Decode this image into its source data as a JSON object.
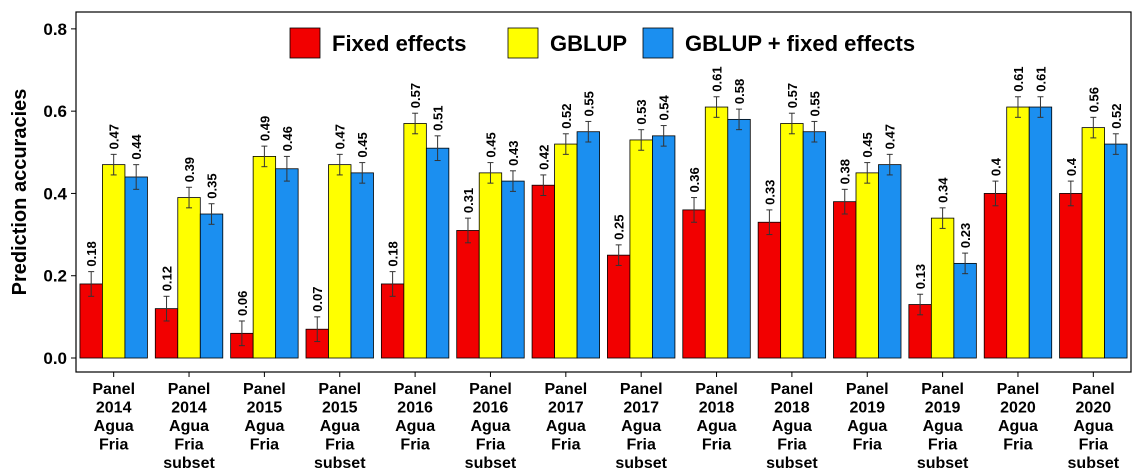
{
  "chart_data": {
    "type": "bar",
    "ylabel": "Prediction accuracies",
    "categories": [
      "Panel 2014 Agua Fria",
      "Panel 2014 Agua Fria subset",
      "Panel 2015 Agua Fria",
      "Panel 2015 Agua Fria subset",
      "Panel 2016 Agua Fria",
      "Panel 2016 Agua Fria subset",
      "Panel 2017 Agua Fria",
      "Panel 2017 Agua Fria subset",
      "Panel 2018 Agua Fria",
      "Panel 2018 Agua Fria subset",
      "Panel 2019 Agua Fria",
      "Panel 2019 Agua Fria subset",
      "Panel 2020 Agua Fria",
      "Panel 2020 Agua Fria subset"
    ],
    "series": [
      {
        "name": "Fixed effects",
        "color": "#f20000",
        "values": [
          0.18,
          0.12,
          0.06,
          0.07,
          0.18,
          0.31,
          0.42,
          0.25,
          0.36,
          0.33,
          0.38,
          0.13,
          0.4,
          0.4
        ],
        "errors": [
          0.03,
          0.03,
          0.03,
          0.03,
          0.03,
          0.03,
          0.025,
          0.025,
          0.03,
          0.03,
          0.03,
          0.025,
          0.03,
          0.03
        ]
      },
      {
        "name": "GBLUP",
        "color": "#ffff00",
        "values": [
          0.47,
          0.39,
          0.49,
          0.47,
          0.57,
          0.45,
          0.52,
          0.53,
          0.61,
          0.57,
          0.45,
          0.34,
          0.61,
          0.56
        ],
        "errors": [
          0.025,
          0.025,
          0.025,
          0.025,
          0.025,
          0.025,
          0.025,
          0.025,
          0.025,
          0.025,
          0.025,
          0.025,
          0.025,
          0.025
        ]
      },
      {
        "name": "GBLUP + fixed effects",
        "color": "#1b8ff0",
        "values": [
          0.44,
          0.35,
          0.46,
          0.45,
          0.51,
          0.43,
          0.55,
          0.54,
          0.58,
          0.55,
          0.47,
          0.23,
          0.61,
          0.52
        ],
        "errors": [
          0.03,
          0.025,
          0.03,
          0.025,
          0.03,
          0.025,
          0.025,
          0.025,
          0.025,
          0.025,
          0.025,
          0.025,
          0.025,
          0.025
        ]
      }
    ],
    "ylim": [
      -0.034,
      0.841
    ],
    "yticks": [
      {
        "value": 0,
        "label": "0.0"
      },
      0.2,
      0.4,
      0.6,
      0.8
    ],
    "legend": "top"
  }
}
